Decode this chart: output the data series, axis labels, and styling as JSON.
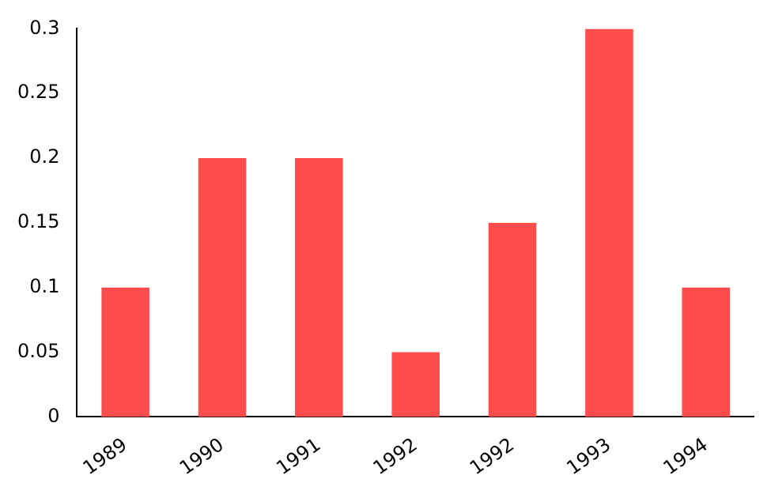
{
  "chart_data": {
    "type": "bar",
    "categories": [
      "1989",
      "1990",
      "1991",
      "1992",
      "1992",
      "1993",
      "1994"
    ],
    "values": [
      0.1,
      0.2,
      0.2,
      0.05,
      0.15,
      0.3,
      0.1
    ],
    "color": "#ff4c4c",
    "ylim": [
      0,
      0.3
    ],
    "yticks": [
      0,
      0.05,
      0.1,
      0.15,
      0.2,
      0.25,
      0.3
    ],
    "grid": false,
    "legend": false
  }
}
